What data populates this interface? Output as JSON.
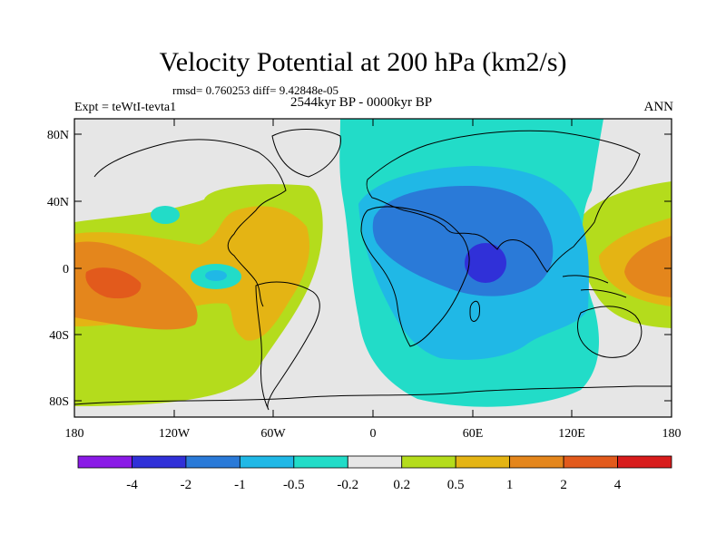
{
  "header": {
    "title": "Velocity Potential at 200 hPa (km2/s)",
    "stats": "rmsd= 0.760253 diff= 9.42848e-05",
    "experiment": "Expt = teWtI-tevta1",
    "period": "2544kyr BP - 0000kyr BP",
    "season": "ANN"
  },
  "map": {
    "lat_labels": [
      "80N",
      "40N",
      "0",
      "40S",
      "80S"
    ],
    "lon_labels": [
      "180",
      "120W",
      "60W",
      "0",
      "60E",
      "120E",
      "180"
    ]
  },
  "colorbar": {
    "labels": [
      "-4",
      "-2",
      "-1",
      "-0.5",
      "-0.2",
      "0.2",
      "0.5",
      "1",
      "2",
      "4"
    ],
    "colors": [
      "#8a1ae6",
      "#3030d8",
      "#2a7ad8",
      "#20b8e6",
      "#22dcc8",
      "#e6e6e6",
      "#b4dc1c",
      "#e4b414",
      "#e4861c",
      "#e25a1c",
      "#d81c1c"
    ]
  }
}
